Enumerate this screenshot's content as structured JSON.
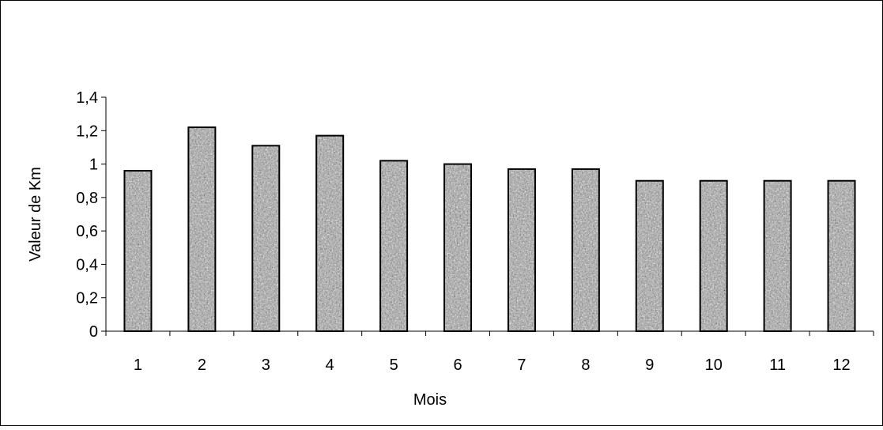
{
  "chart_data": {
    "type": "bar",
    "title": "",
    "xlabel": "Mois",
    "ylabel": "Valeur de Km",
    "categories": [
      "1",
      "2",
      "3",
      "4",
      "5",
      "6",
      "7",
      "8",
      "9",
      "10",
      "11",
      "12"
    ],
    "values": [
      0.96,
      1.22,
      1.11,
      1.17,
      1.02,
      1.0,
      0.97,
      0.97,
      0.9,
      0.9,
      0.9,
      0.9
    ],
    "ylim": [
      0,
      1.4
    ],
    "yticks": [
      "0",
      "0,2",
      "0,4",
      "0,6",
      "0,8",
      "1",
      "1,2",
      "1,4"
    ],
    "grid": false,
    "legend": "none",
    "bar_fill": "textured gray granite pattern",
    "colors": {
      "bar_border": "#000000",
      "axis": "#000000",
      "frame": "#000000",
      "background": "#ffffff"
    }
  }
}
